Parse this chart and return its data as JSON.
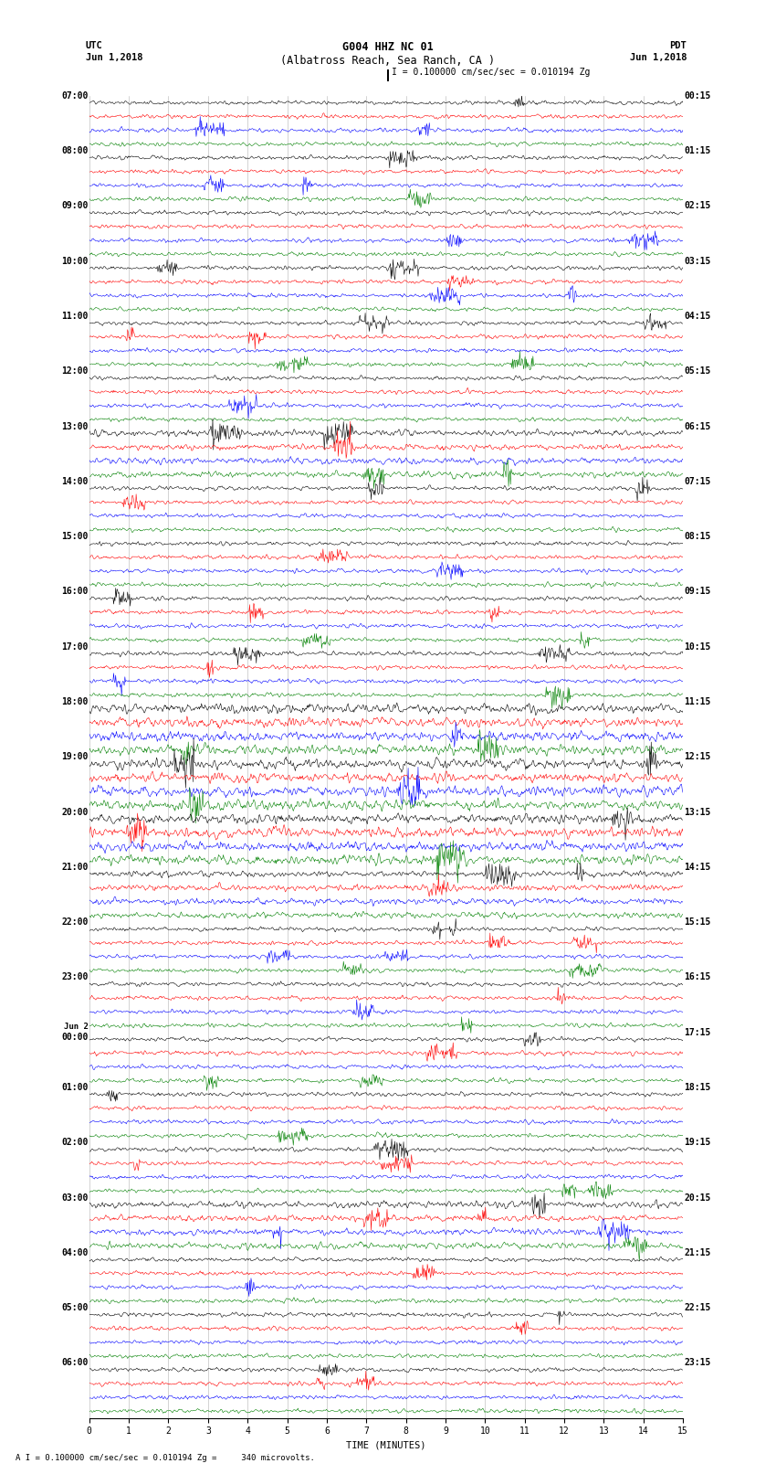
{
  "title_line1": "G004 HHZ NC 01",
  "title_line2": "(Albatross Reach, Sea Ranch, CA )",
  "scale_text": "I = 0.100000 cm/sec/sec = 0.010194 Zg",
  "footer_text": "A I = 0.100000 cm/sec/sec = 0.010194 Zg =     340 microvolts.",
  "utc_label": "UTC",
  "utc_date": "Jun 1,2018",
  "pdt_label": "PDT",
  "pdt_date": "Jun 1,2018",
  "xlabel": "TIME (MINUTES)",
  "colors": [
    "black",
    "red",
    "blue",
    "green"
  ],
  "minutes_per_row": 15,
  "x_ticks": [
    0,
    1,
    2,
    3,
    4,
    5,
    6,
    7,
    8,
    9,
    10,
    11,
    12,
    13,
    14,
    15
  ],
  "utc_times_labeled": [
    "07:00",
    "08:00",
    "09:00",
    "10:00",
    "11:00",
    "12:00",
    "13:00",
    "14:00",
    "15:00",
    "16:00",
    "17:00",
    "18:00",
    "19:00",
    "20:00",
    "21:00",
    "22:00",
    "23:00",
    "Jun 2\\n00:00",
    "01:00",
    "02:00",
    "03:00",
    "04:00",
    "05:00",
    "06:00"
  ],
  "pdt_times_labeled": [
    "00:15",
    "01:15",
    "02:15",
    "03:15",
    "04:15",
    "05:15",
    "06:15",
    "07:15",
    "08:15",
    "09:15",
    "10:15",
    "11:15",
    "12:15",
    "13:15",
    "14:15",
    "15:15",
    "16:15",
    "17:15",
    "18:15",
    "19:15",
    "20:15",
    "21:15",
    "22:15",
    "23:15"
  ],
  "n_hour_groups": 24,
  "traces_per_group": 4,
  "fig_width": 8.5,
  "fig_height": 16.13,
  "dpi": 100
}
